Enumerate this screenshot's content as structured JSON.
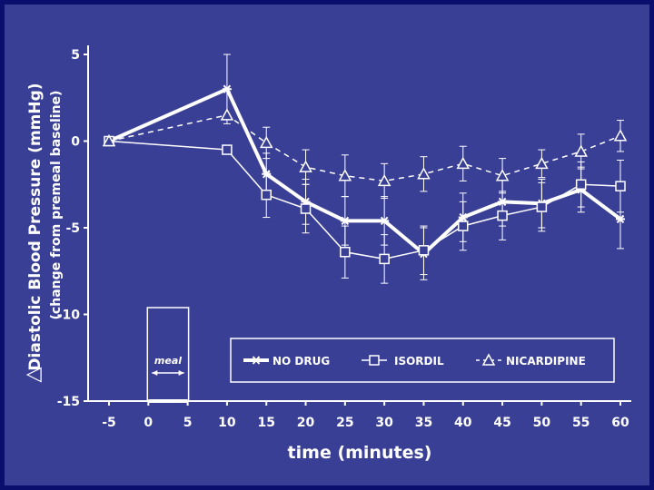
{
  "chart_data": {
    "type": "line",
    "title": "",
    "xlabel": "time (minutes)",
    "ylabel": "Diastolic Blood Pressure (mmHg)",
    "ylabel_sub": "(change from premeal baseline)",
    "ylabel_symbol": "△",
    "xlim": [
      -5,
      60
    ],
    "ylim": [
      -15,
      5
    ],
    "x_ticks": [
      "-5",
      "0",
      "5",
      "10",
      "15",
      "20",
      "25",
      "30",
      "35",
      "40",
      "45",
      "50",
      "55",
      "60"
    ],
    "y_ticks": [
      "5",
      "0",
      "-5",
      "-10",
      "-15"
    ],
    "x": [
      -5,
      10,
      15,
      20,
      25,
      30,
      35,
      40,
      45,
      50,
      55,
      60
    ],
    "series": [
      {
        "name": "NO DRUG",
        "marker": "star",
        "style": "solid-thick",
        "values": [
          0,
          3.0,
          -1.9,
          -3.5,
          -4.6,
          -4.6,
          -6.5,
          -4.4,
          -3.5,
          -3.6,
          -2.8,
          -4.5
        ],
        "err": [
          0,
          2.0,
          1.2,
          1.3,
          1.4,
          1.4,
          1.5,
          1.4,
          1.4,
          1.4,
          1.3,
          1.7
        ]
      },
      {
        "name": "ISORDIL",
        "marker": "square",
        "style": "solid-thin",
        "values": [
          0,
          -0.5,
          -3.1,
          -3.9,
          -6.4,
          -6.8,
          -6.3,
          -4.9,
          -4.3,
          -3.8,
          -2.5,
          -2.6
        ],
        "err": [
          0,
          0,
          1.3,
          1.4,
          1.5,
          1.4,
          1.4,
          1.4,
          1.4,
          1.4,
          1.3,
          1.5
        ]
      },
      {
        "name": "NICARDIPINE",
        "marker": "triangle",
        "style": "dashed",
        "values": [
          0,
          1.5,
          -0.1,
          -1.5,
          -2.0,
          -2.3,
          -1.9,
          -1.3,
          -2.0,
          -1.3,
          -0.6,
          0.3
        ],
        "err": [
          0,
          0,
          0.9,
          1.0,
          1.2,
          1.0,
          1.0,
          1.0,
          1.0,
          0.8,
          1.0,
          0.9
        ]
      }
    ],
    "meal": {
      "label": "meal",
      "start": 0,
      "end": 5
    },
    "legend_position": "bottom-right",
    "grid": false
  },
  "colors": {
    "background": "#3a3f96",
    "border": "#0a0f6e",
    "ink": "#ffffff"
  }
}
